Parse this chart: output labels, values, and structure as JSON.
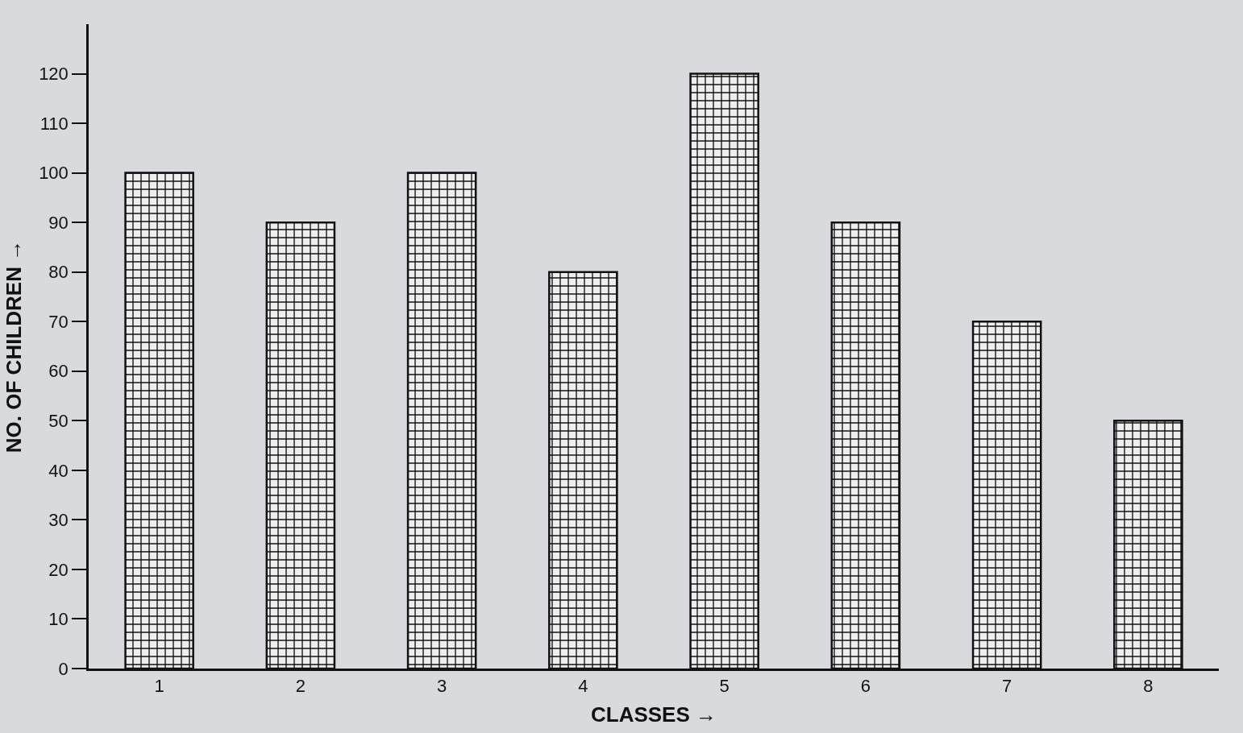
{
  "chart_data": {
    "type": "bar",
    "xlabel": "CLASSES →",
    "ylabel": "NO. OF CHILDREN →",
    "categories": [
      "1",
      "2",
      "3",
      "4",
      "5",
      "6",
      "7",
      "8"
    ],
    "values": [
      100,
      90,
      100,
      80,
      120,
      90,
      70,
      50
    ],
    "color": "#111111",
    "ylim": [
      0,
      130
    ],
    "yticks": [
      0,
      10,
      20,
      30,
      40,
      50,
      60,
      70,
      80,
      90,
      100,
      110,
      120
    ],
    "grid": false
  }
}
